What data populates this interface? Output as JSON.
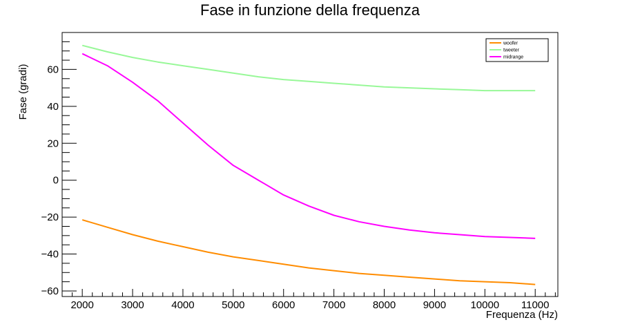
{
  "chart_data": {
    "type": "line",
    "title": "Fase in funzione della frequenza",
    "xlabel": "Frequenza (Hz)",
    "ylabel": "Fase (gradi)",
    "xlim": [
      1600,
      11450
    ],
    "ylim": [
      -63,
      80
    ],
    "xticks": [
      2000,
      3000,
      4000,
      5000,
      6000,
      7000,
      8000,
      9000,
      10000,
      11000
    ],
    "yticks": [
      -60,
      -40,
      -20,
      0,
      20,
      40,
      60
    ],
    "grid": false,
    "legend": {
      "position": "top-right"
    },
    "x": [
      2000,
      2500,
      3000,
      3500,
      4000,
      4500,
      5000,
      5500,
      6000,
      6500,
      7000,
      7500,
      8000,
      8500,
      9000,
      9500,
      10000,
      10500,
      11000
    ],
    "series": [
      {
        "name": "woofer",
        "color": "#ff8c00",
        "values": [
          -21.5,
          -25.5,
          -29.5,
          -33,
          -36,
          -39,
          -41.5,
          -43.5,
          -45.5,
          -47.5,
          -49,
          -50.5,
          -51.5,
          -52.5,
          -53.5,
          -54.5,
          -55,
          -55.5,
          -56.5
        ]
      },
      {
        "name": "tweeter",
        "color": "#98f898",
        "values": [
          73,
          69.5,
          66.5,
          64,
          62,
          60,
          58,
          56,
          54.5,
          53.5,
          52.5,
          51.5,
          50.5,
          50,
          49.5,
          49,
          48.5,
          48.5,
          48.5
        ]
      },
      {
        "name": "midrange",
        "color": "#ff00ff",
        "values": [
          68.5,
          62,
          53,
          43,
          31,
          19,
          8,
          0,
          -8,
          -14,
          -19,
          -22.5,
          -25,
          -27,
          -28.5,
          -29.5,
          -30.5,
          -31,
          -31.5
        ]
      }
    ]
  }
}
